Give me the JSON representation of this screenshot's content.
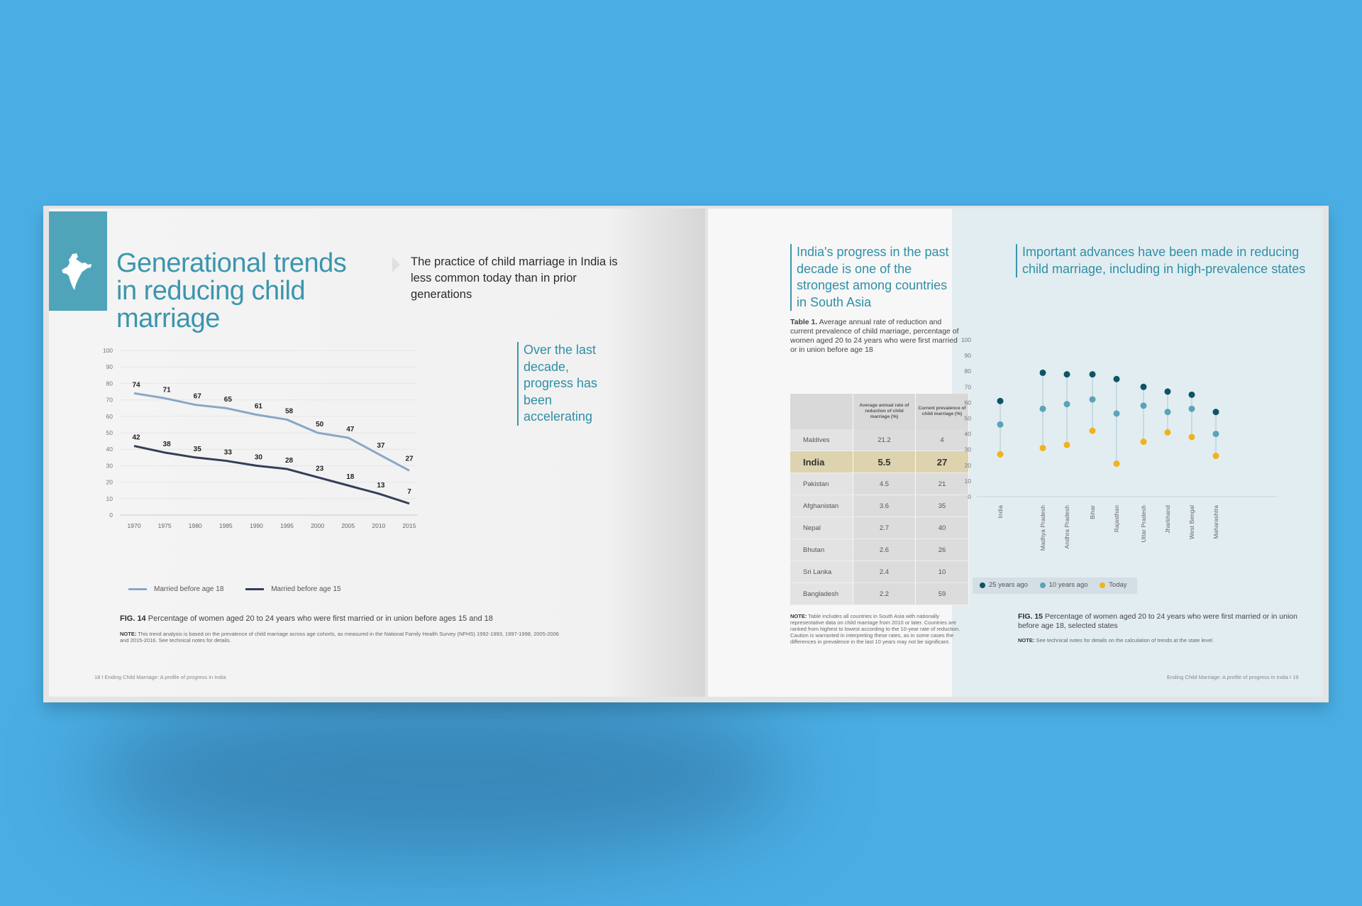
{
  "left_page": {
    "title": "Generational trends in reducing child marriage",
    "intro": "The practice of child marriage in India is less common today than in prior generations",
    "callout": "Over the last decade, progress has been accelerating",
    "legend": {
      "series1": "Married before age 18",
      "series2": "Married before age 15"
    },
    "caption_label": "FIG. 14",
    "caption": "Percentage of women aged 20 to 24 years who were first married or in union before ages 15 and 18",
    "note_label": "NOTE:",
    "note": "This trend analysis is based on the prevalence of child marriage across age cohorts, as measured in the National Family Health Survey (NFHS) 1992-1993, 1997-1998, 2005-2006 and 2015-2016. See technical notes for details.",
    "footer_page": "18",
    "footer_sep": "I",
    "footer_text": "Ending Child Marriage: A profile of progress in India"
  },
  "right_page": {
    "callout1": "India's progress in the past decade is one of the strongest among countries in South Asia",
    "callout2": "Important advances have been made in reducing child marriage, including in high-prevalence states",
    "table_label": "Table 1.",
    "table_title": "Average annual rate of reduction and current prevalence of child marriage, percentage of women aged 20 to 24 years who were first married or in union before age 18",
    "table_headers": [
      "",
      "Average annual rate of reduction of child marriage (%)",
      "Current prevalence of child marriage (%)"
    ],
    "table_rows": [
      {
        "country": "Maldives",
        "rate": "21.2",
        "prev": "4"
      },
      {
        "country": "India",
        "rate": "5.5",
        "prev": "27"
      },
      {
        "country": "Pakistan",
        "rate": "4.5",
        "prev": "21"
      },
      {
        "country": "Afghanistan",
        "rate": "3.6",
        "prev": "35"
      },
      {
        "country": "Nepal",
        "rate": "2.7",
        "prev": "40"
      },
      {
        "country": "Bhutan",
        "rate": "2.6",
        "prev": "26"
      },
      {
        "country": "Sri Lanka",
        "rate": "2.4",
        "prev": "10"
      },
      {
        "country": "Bangladesh",
        "rate": "2.2",
        "prev": "59"
      }
    ],
    "table_note_label": "NOTE:",
    "table_note": "Table includes all countries in South Asia with nationally representative data on child marriage from 2010 or later. Countries are ranked from highest to lowest according to the 10-year rate of reduction. Caution is warranted in interpreting these rates, as in some cases the differences in prevalence in the last 10 years may not be significant.",
    "dot_legend": [
      "25 years ago",
      "10 years ago",
      "Today"
    ],
    "caption_label": "FIG. 15",
    "caption": "Percentage of women aged 20 to 24 years who were first married or in union before age 18, selected states",
    "note_label": "NOTE:",
    "note": "See technical notes for details on the calculation of trends at the state level.",
    "footer_text": "Ending Child Marriage: A profile of progress in India",
    "footer_sep": "I",
    "footer_page": "19"
  },
  "colors": {
    "accent": "#3b96ad",
    "series18": "#8aa7c6",
    "series15": "#343e57",
    "dot25": "#0d5466",
    "dot10": "#5aa3b9",
    "dotToday": "#f2b21c"
  },
  "chart_data": [
    {
      "type": "line",
      "title": "FIG. 14",
      "x": [
        "1970",
        "1975",
        "1980",
        "1985",
        "1990",
        "1995",
        "2000",
        "2005",
        "2010",
        "2015"
      ],
      "yticks": [
        "0",
        "10",
        "20",
        "30",
        "40",
        "50",
        "60",
        "70",
        "80",
        "90",
        "100"
      ],
      "ylim": [
        0,
        100
      ],
      "series": [
        {
          "name": "Married before age 18",
          "values": [
            74,
            71,
            67,
            65,
            61,
            58,
            50,
            47,
            37,
            27
          ]
        },
        {
          "name": "Married before age 15",
          "values": [
            42,
            38,
            35,
            33,
            30,
            28,
            23,
            18,
            13,
            7
          ]
        }
      ]
    },
    {
      "type": "scatter",
      "title": "FIG. 15",
      "categories": [
        "India",
        "Madhya Pradesh",
        "Andhra Pradesh",
        "Bihar",
        "Rajasthan",
        "Uttar Pradesh",
        "Jharkhand",
        "West Bengal",
        "Maharashtra"
      ],
      "yticks": [
        "0",
        "10",
        "20",
        "30",
        "40",
        "50",
        "60",
        "70",
        "80",
        "90",
        "100"
      ],
      "ylim": [
        0,
        100
      ],
      "series": [
        {
          "name": "25 years ago",
          "values": [
            61,
            79,
            78,
            78,
            75,
            70,
            67,
            65,
            54
          ]
        },
        {
          "name": "10 years ago",
          "values": [
            46,
            56,
            59,
            62,
            53,
            58,
            54,
            56,
            40
          ]
        },
        {
          "name": "Today",
          "values": [
            27,
            31,
            33,
            42,
            21,
            35,
            41,
            38,
            26
          ]
        }
      ]
    }
  ]
}
